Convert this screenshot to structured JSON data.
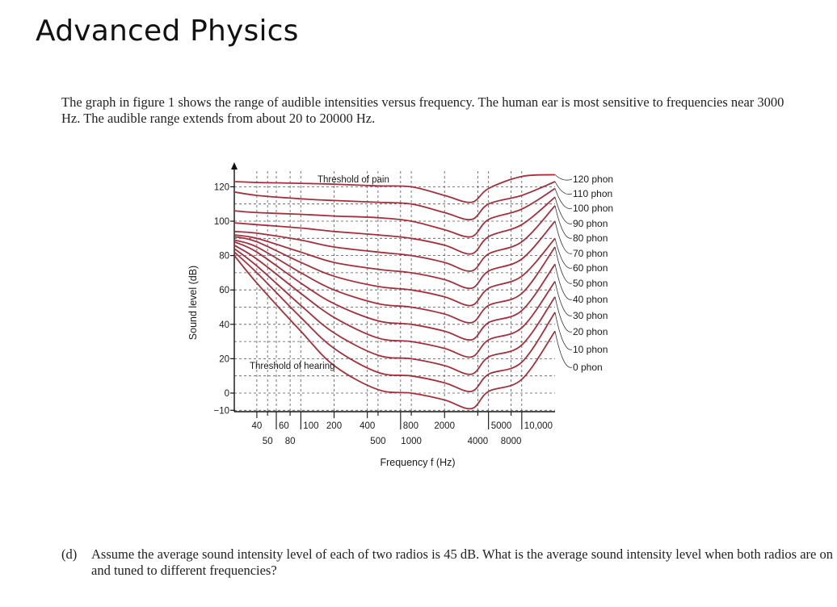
{
  "page": {
    "title": "Advanced Physics",
    "intro": "The graph in figure 1 shows the range of audible intensities versus frequency. The human ear is most sensitive to frequencies near 3000 Hz. The audible range extends from about 20 to 20000 Hz.",
    "question_label": "(d)",
    "question_text": "Assume the average sound intensity level of each of two radios is 45 dB. What is the average sound intensity level when both radios are on and tuned to different frequencies?"
  },
  "colors": {
    "curve": "#a3303c",
    "grid": "#555555",
    "text": "#222222"
  },
  "chart_data": {
    "type": "line",
    "title": "",
    "xlabel": "Frequency f (Hz)",
    "ylabel": "Sound level (dB)",
    "x_scale": "log",
    "xlim": [
      25,
      20000
    ],
    "ylim": [
      -15,
      125
    ],
    "x_ticks_top": [
      "40",
      "60",
      "100",
      "200",
      "400",
      "800",
      "2000",
      "5000",
      "10,000"
    ],
    "x_ticks_bottom": [
      "50",
      "80",
      "500",
      "1000",
      "4000",
      "8000"
    ],
    "y_ticks": [
      "120",
      "100",
      "80",
      "60",
      "40",
      "20",
      "0",
      "−10"
    ],
    "annotations": [
      "Threshold of pain",
      "Threshold of hearing"
    ],
    "x": [
      25,
      40,
      100,
      200,
      500,
      1000,
      2000,
      3500,
      5000,
      10000,
      20000
    ],
    "series": [
      {
        "name": "120 phon",
        "values": [
          123,
          122.5,
          122,
          121.5,
          120.5,
          120,
          115,
          111,
          119,
          126,
          127
        ]
      },
      {
        "name": "110 phon",
        "values": [
          117,
          115,
          113,
          112,
          111,
          110,
          105,
          101,
          110,
          115,
          123
        ]
      },
      {
        "name": "100 phon",
        "values": [
          106,
          105,
          104,
          103,
          102,
          100,
          95,
          91,
          101,
          107,
          119
        ]
      },
      {
        "name": "90 phon",
        "values": [
          99,
          98,
          96,
          94,
          92,
          90,
          86,
          81,
          91,
          98,
          114
        ]
      },
      {
        "name": "80 phon",
        "values": [
          94,
          93,
          89,
          85,
          82,
          80,
          76,
          71,
          81,
          88,
          109
        ]
      },
      {
        "name": "70 phon",
        "values": [
          92,
          90,
          82,
          76,
          72,
          70,
          66,
          61,
          71,
          78,
          100
        ]
      },
      {
        "name": "60 phon",
        "values": [
          91,
          88,
          76,
          68,
          62,
          60,
          56,
          51,
          61,
          68,
          90
        ]
      },
      {
        "name": "50 phon",
        "values": [
          89,
          85,
          70,
          60,
          52,
          50,
          46,
          41,
          51,
          58,
          85
        ]
      },
      {
        "name": "40 phon",
        "values": [
          88,
          82,
          64,
          52,
          42,
          40,
          36,
          31,
          41,
          48,
          75
        ]
      },
      {
        "name": "30 phon",
        "values": [
          86,
          78,
          58,
          44,
          32,
          30,
          26,
          21,
          31,
          38,
          65
        ]
      },
      {
        "name": "20 phon",
        "values": [
          84,
          74,
          51,
          35,
          22,
          20,
          16,
          11,
          21,
          28,
          56
        ]
      },
      {
        "name": "10 phon",
        "values": [
          82,
          70,
          44,
          26,
          12,
          10,
          6,
          1,
          11,
          18,
          47
        ]
      },
      {
        "name": "0 phon",
        "values": [
          80,
          64,
          36,
          16,
          2,
          0,
          -4,
          -9,
          1,
          8,
          36
        ]
      }
    ]
  }
}
